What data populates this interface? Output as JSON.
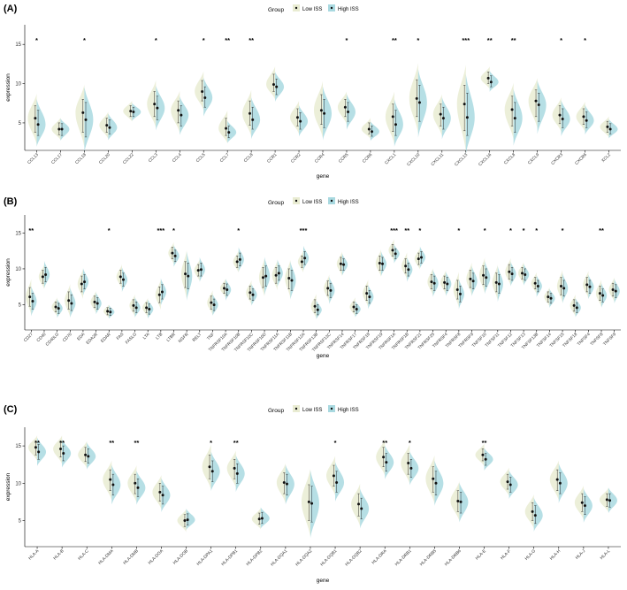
{
  "colors": {
    "low_iss": "#e9ecd2",
    "high_iss": "#a9d9e0",
    "point": "#111111",
    "axis": "#000000"
  },
  "chart_data": [
    {
      "type": "violin",
      "panel_label": "(A)",
      "legend_title": "Group",
      "legend_position": "top",
      "legend": [
        "Low ISS",
        "High ISS"
      ],
      "xlabel": "gene",
      "ylabel": "expression",
      "ylim": [
        1.5,
        17.5
      ],
      "yticks": [
        5,
        10,
        15
      ],
      "grid": false,
      "categories": [
        "CCL13",
        "CCL17",
        "CCL18",
        "CCL20",
        "CCL22",
        "CCL3",
        "CCL4",
        "CCL5",
        "CCL7",
        "CCL8",
        "CCR1",
        "CCR2",
        "CCR4",
        "CCR5",
        "CCR6",
        "CXCL1",
        "CXCL10",
        "CXCL11",
        "CXCL13",
        "CXCL16",
        "CXCL8",
        "CXCL9",
        "CXCR3",
        "CXCR6",
        "XCL2"
      ],
      "significance": [
        "*",
        "",
        "*",
        "",
        "",
        "*",
        "",
        "*",
        "**",
        "**",
        "",
        "",
        "",
        "*",
        "",
        "**",
        "*",
        "",
        "***",
        "**",
        "**",
        "",
        "*",
        "*",
        ""
      ],
      "series": [
        {
          "name": "Low ISS",
          "median": [
            5.6,
            4.2,
            6.3,
            4.7,
            6.5,
            7.4,
            6.6,
            9.0,
            4.3,
            6.2,
            9.9,
            5.7,
            6.6,
            7.0,
            4.2,
            5.8,
            8.1,
            6.1,
            7.4,
            10.7,
            6.7,
            7.8,
            6.0,
            5.8,
            4.5
          ],
          "lower": [
            3.8,
            3.5,
            3.8,
            3.8,
            5.8,
            5.8,
            5.0,
            7.8,
            3.4,
            4.7,
            9.0,
            4.6,
            4.8,
            5.8,
            3.6,
            3.9,
            5.8,
            4.6,
            4.0,
            10.0,
            4.6,
            5.8,
            4.9,
            4.8,
            3.8
          ],
          "upper": [
            7.2,
            5.0,
            8.0,
            5.6,
            7.2,
            9.0,
            7.8,
            10.4,
            5.6,
            7.8,
            11.2,
            6.8,
            8.6,
            8.0,
            5.0,
            7.4,
            10.5,
            7.4,
            9.8,
            11.5,
            8.4,
            9.2,
            7.2,
            6.8,
            5.2
          ]
        },
        {
          "name": "High ISS",
          "median": [
            4.8,
            4.2,
            5.4,
            4.4,
            6.4,
            6.9,
            6.0,
            8.2,
            3.8,
            5.4,
            9.6,
            5.2,
            6.2,
            6.4,
            3.9,
            4.8,
            7.6,
            5.6,
            5.7,
            10.2,
            5.6,
            7.3,
            5.5,
            5.3,
            4.2
          ],
          "lower": [
            3.4,
            3.4,
            3.2,
            3.6,
            5.8,
            5.4,
            4.6,
            7.0,
            3.1,
            4.2,
            8.6,
            4.2,
            4.4,
            5.2,
            3.3,
            3.4,
            5.2,
            4.2,
            3.4,
            9.6,
            3.8,
            5.2,
            4.4,
            4.4,
            3.6
          ],
          "upper": [
            6.6,
            4.9,
            7.6,
            5.4,
            7.0,
            8.4,
            7.2,
            9.6,
            4.6,
            7.0,
            10.6,
            6.3,
            8.0,
            7.6,
            4.6,
            6.6,
            9.8,
            7.0,
            8.8,
            11.0,
            7.6,
            8.8,
            6.8,
            6.4,
            4.9
          ]
        }
      ]
    },
    {
      "type": "violin",
      "panel_label": "(B)",
      "legend_title": "Group",
      "legend_position": "top",
      "legend": [
        "Low ISS",
        "High ISS"
      ],
      "xlabel": "gene",
      "ylabel": "expression",
      "ylim": [
        1.5,
        17.5
      ],
      "yticks": [
        5,
        10,
        15
      ],
      "grid": false,
      "categories": [
        "CD27",
        "CD40",
        "CD40LG",
        "CD70",
        "EDA",
        "EDA2R",
        "EDAR",
        "FAS",
        "FASLG",
        "LTA",
        "LTB",
        "LTBR",
        "NGFR",
        "RELT",
        "TNF",
        "TNFRSF10A",
        "TNFRSF10B",
        "TNFRSF10C",
        "TNFRSF10D",
        "TNFRSF11A",
        "TNFRSF11B",
        "TNFRSF12A",
        "TNFRSF13B",
        "TNFRSF13C",
        "TNFRSF14",
        "TNFRSF17",
        "TNFRSF18",
        "TNFRSF19",
        "TNFRSF1A",
        "TNFRSF1B",
        "TNFRSF21",
        "TNFRSF25",
        "TNFRSF4",
        "TNFRSF8",
        "TNFRSF9",
        "TNFSF10",
        "TNFSF11",
        "TNFSF12",
        "TNFSF13",
        "TNFSF13B",
        "TNFSF14",
        "TNFSF15",
        "TNFSF18",
        "TNFSF4",
        "TNFSF8",
        "TNFSF9"
      ],
      "significance": [
        "**",
        "",
        "",
        "",
        "",
        "",
        "*",
        "",
        "",
        "",
        "***",
        "*",
        "",
        "",
        "",
        "",
        "*",
        "",
        "",
        "",
        "",
        "***",
        "",
        "",
        "",
        "",
        "",
        "",
        "***",
        "**",
        "*",
        "",
        "",
        "*",
        "",
        "*",
        "",
        "*",
        "*",
        "*",
        "",
        "*",
        "",
        "",
        "**",
        ""
      ],
      "series": [
        {
          "name": "Low ISS",
          "median": [
            6.1,
            8.9,
            4.7,
            5.6,
            7.9,
            5.4,
            4.1,
            8.9,
            4.9,
            4.6,
            6.4,
            12.2,
            9.3,
            9.8,
            5.3,
            7.3,
            11.0,
            6.7,
            8.8,
            9.1,
            8.7,
            11.0,
            4.8,
            7.3,
            10.7,
            4.7,
            6.6,
            10.8,
            12.6,
            10.4,
            11.4,
            8.2,
            8.1,
            7.1,
            8.6,
            9.1,
            8.1,
            9.6,
            9.4,
            8.0,
            6.1,
            7.6,
            4.9,
            7.8,
            6.6,
            7.1
          ],
          "lower": [
            4.8,
            8.0,
            4.0,
            4.4,
            6.8,
            4.6,
            3.6,
            8.0,
            4.1,
            3.9,
            5.3,
            11.4,
            7.4,
            9.0,
            4.4,
            6.6,
            10.2,
            5.8,
            7.4,
            8.0,
            7.2,
            10.2,
            3.9,
            6.3,
            9.8,
            4.0,
            5.6,
            9.8,
            11.8,
            9.4,
            10.6,
            7.2,
            7.2,
            5.8,
            7.4,
            7.8,
            6.8,
            8.6,
            8.6,
            7.2,
            5.4,
            6.4,
            4.1,
            6.8,
            5.6,
            6.2
          ],
          "upper": [
            7.4,
            9.8,
            5.4,
            6.8,
            9.0,
            6.2,
            4.6,
            9.8,
            5.7,
            5.3,
            7.5,
            13.0,
            11.0,
            10.6,
            6.2,
            8.0,
            11.8,
            7.6,
            10.2,
            10.2,
            10.0,
            11.8,
            5.7,
            8.3,
            11.6,
            5.4,
            7.6,
            11.8,
            13.4,
            11.4,
            12.2,
            9.2,
            9.0,
            8.4,
            9.8,
            10.4,
            9.4,
            10.6,
            10.2,
            8.8,
            6.8,
            8.8,
            5.7,
            8.8,
            7.6,
            8.0
          ]
        },
        {
          "name": "High ISS",
          "median": [
            5.5,
            9.2,
            4.5,
            5.2,
            8.2,
            5.2,
            4.0,
            8.5,
            4.6,
            4.4,
            6.8,
            11.8,
            9.0,
            9.9,
            5.0,
            7.1,
            11.3,
            6.4,
            9.0,
            9.4,
            8.4,
            11.5,
            4.3,
            7.0,
            10.6,
            4.4,
            6.1,
            10.7,
            12.1,
            9.9,
            11.6,
            8.0,
            7.9,
            6.5,
            8.3,
            8.8,
            7.9,
            9.3,
            9.2,
            7.6,
            5.9,
            7.3,
            4.6,
            7.5,
            6.3,
            6.9
          ],
          "lower": [
            4.4,
            8.2,
            3.8,
            4.2,
            7.2,
            4.4,
            3.5,
            7.6,
            3.9,
            3.7,
            5.8,
            11.0,
            7.2,
            9.0,
            4.2,
            6.3,
            10.4,
            5.6,
            7.6,
            8.4,
            7.0,
            10.6,
            3.6,
            6.0,
            9.8,
            3.8,
            5.2,
            9.8,
            11.4,
            9.0,
            10.8,
            7.0,
            7.0,
            5.4,
            7.2,
            7.6,
            6.6,
            8.4,
            8.4,
            6.8,
            5.2,
            6.2,
            3.9,
            6.6,
            5.4,
            6.0
          ],
          "upper": [
            6.6,
            10.2,
            5.2,
            6.4,
            9.2,
            6.0,
            4.5,
            9.4,
            5.4,
            5.1,
            7.8,
            12.6,
            10.8,
            10.8,
            5.8,
            7.9,
            12.2,
            7.2,
            10.4,
            10.4,
            9.8,
            12.4,
            5.0,
            8.0,
            11.4,
            5.0,
            7.0,
            11.6,
            12.8,
            10.8,
            12.4,
            9.0,
            8.8,
            7.6,
            9.4,
            10.0,
            9.2,
            10.2,
            10.0,
            8.4,
            6.6,
            8.4,
            5.3,
            8.4,
            7.2,
            7.8
          ]
        }
      ]
    },
    {
      "type": "violin",
      "panel_label": "(C)",
      "legend_title": "Group",
      "legend_position": "top",
      "legend": [
        "Low ISS",
        "High ISS"
      ],
      "xlabel": "gene",
      "ylabel": "expression",
      "ylim": [
        1.5,
        17.5
      ],
      "yticks": [
        5,
        10,
        15
      ],
      "grid": false,
      "categories": [
        "HLA-A",
        "HLA-B",
        "HLA-C",
        "HLA-DMA",
        "HLA-DMB",
        "HLA-DOA",
        "HLA-DOB",
        "HLA-DPA1",
        "HLA-DPB1",
        "HLA-DPB2",
        "HLA-DQA1",
        "HLA-DQA2",
        "HLA-DQB1",
        "HLA-DQB2",
        "HLA-DRA",
        "HLA-DRB1",
        "HLA-DRB5",
        "HLA-DRB6",
        "HLA-E",
        "HLA-F",
        "HLA-G",
        "HLA-H",
        "HLA-J",
        "HLA-L"
      ],
      "significance": [
        "**",
        "**",
        "",
        "**",
        "**",
        "",
        "",
        "*",
        "**",
        "",
        "",
        "",
        "*",
        "",
        "**",
        "*",
        "",
        "",
        "**",
        "",
        "",
        "",
        "",
        ""
      ],
      "series": [
        {
          "name": "Low ISS",
          "median": [
            14.8,
            14.6,
            13.8,
            10.5,
            10.0,
            8.8,
            5.0,
            12.2,
            12.0,
            5.2,
            10.1,
            7.5,
            11.0,
            7.2,
            13.5,
            12.7,
            10.6,
            7.6,
            13.8,
            10.2,
            6.2,
            10.5,
            7.4,
            7.8
          ],
          "lower": [
            13.8,
            13.5,
            12.9,
            9.0,
            8.6,
            7.6,
            4.2,
            10.6,
            10.6,
            4.5,
            8.6,
            5.0,
            9.6,
            5.6,
            12.2,
            11.2,
            8.8,
            6.2,
            13.0,
            9.2,
            5.0,
            9.0,
            6.2,
            6.9
          ],
          "upper": [
            15.6,
            15.5,
            14.8,
            11.8,
            11.2,
            10.0,
            5.8,
            13.8,
            13.2,
            6.0,
            11.4,
            9.8,
            12.4,
            8.6,
            14.8,
            14.0,
            12.2,
            9.0,
            14.6,
            11.2,
            7.4,
            11.8,
            8.6,
            8.6
          ]
        },
        {
          "name": "High ISS",
          "median": [
            14.2,
            14.0,
            13.6,
            9.8,
            9.4,
            8.4,
            5.1,
            11.6,
            11.3,
            5.3,
            9.9,
            7.3,
            10.1,
            6.6,
            12.8,
            12.0,
            10.0,
            7.5,
            13.2,
            9.8,
            5.7,
            10.0,
            7.0,
            7.7
          ],
          "lower": [
            13.2,
            13.0,
            12.7,
            8.4,
            8.2,
            7.2,
            4.4,
            10.2,
            10.0,
            4.6,
            8.4,
            4.8,
            8.8,
            5.2,
            11.6,
            10.8,
            8.4,
            6.0,
            12.4,
            8.8,
            4.6,
            8.6,
            5.8,
            6.8
          ],
          "upper": [
            15.2,
            15.0,
            14.6,
            11.2,
            10.6,
            9.6,
            5.9,
            13.0,
            12.6,
            6.1,
            11.2,
            9.6,
            11.6,
            8.0,
            14.0,
            13.2,
            11.6,
            8.8,
            14.0,
            10.8,
            7.0,
            11.4,
            8.2,
            8.6
          ]
        }
      ]
    }
  ]
}
